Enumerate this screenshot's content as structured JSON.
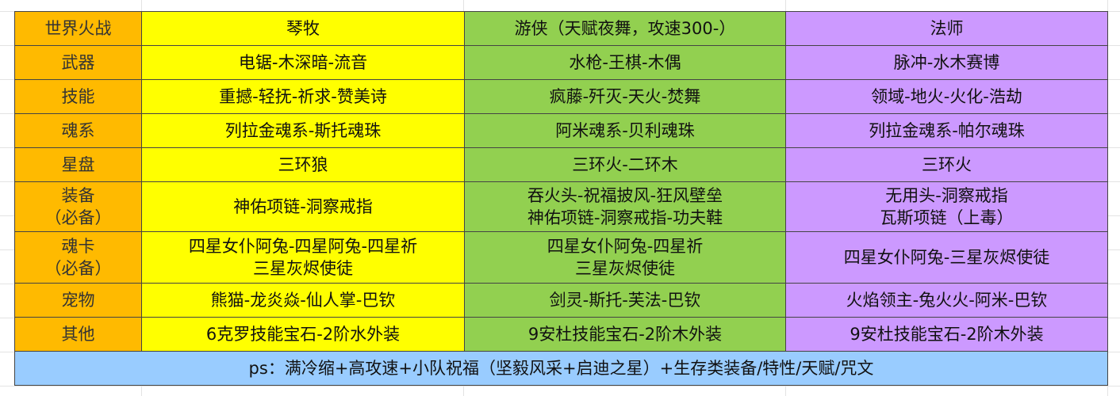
{
  "colors": {
    "label": "#ffba00",
    "qinmu": "#ffff00",
    "youxia": "#92d050",
    "fashi": "#cc99ff",
    "note": "#99ccff"
  },
  "header": [
    "世界火战",
    "琴牧",
    "游侠（天赋夜舞，攻速300-）",
    "法师"
  ],
  "rows": [
    {
      "label": [
        "武器"
      ],
      "cells": [
        [
          "电锯-木深暗-流音"
        ],
        [
          "水枪-王棋-木偶"
        ],
        [
          "脉冲-水木赛博"
        ]
      ]
    },
    {
      "label": [
        "技能"
      ],
      "cells": [
        [
          "重撼-轻抚-祈求-赞美诗"
        ],
        [
          "疯藤-歼灭-天火-焚舞"
        ],
        [
          "领域-地火-火化-浩劫"
        ]
      ]
    },
    {
      "label": [
        "魂系"
      ],
      "cells": [
        [
          "列拉金魂系-斯托魂珠"
        ],
        [
          "阿米魂系-贝利魂珠"
        ],
        [
          "列拉金魂系-帕尔魂珠"
        ]
      ]
    },
    {
      "label": [
        "星盘"
      ],
      "cells": [
        [
          "三环狼"
        ],
        [
          "三环火-二环木"
        ],
        [
          "三环火"
        ]
      ]
    },
    {
      "label": [
        "装备",
        "（必备）"
      ],
      "cells": [
        [
          "神佑项链-洞察戒指"
        ],
        [
          "吞火头-祝福披风-狂风壁垒",
          "神佑项链-洞察戒指-功夫鞋"
        ],
        [
          "无用头-洞察戒指",
          "瓦斯项链（上毒）"
        ]
      ]
    },
    {
      "label": [
        "魂卡",
        "（必备）"
      ],
      "cells": [
        [
          "四星女仆阿兔-四星阿兔-四星祈",
          "三星灰烬使徒"
        ],
        [
          "四星女仆阿兔-四星祈",
          "三星灰烬使徒"
        ],
        [
          "四星女仆阿兔-三星灰烬使徒"
        ]
      ]
    },
    {
      "label": [
        "宠物"
      ],
      "cells": [
        [
          "熊猫-龙炎焱-仙人掌-巴钦"
        ],
        [
          "剑灵-斯托-芙法-巴钦"
        ],
        [
          "火焰领主-兔火火-阿米-巴钦"
        ]
      ]
    },
    {
      "label": [
        "其他"
      ],
      "cells": [
        [
          "6克罗技能宝石-2阶水外装"
        ],
        [
          "9安杜技能宝石-2阶木外装"
        ],
        [
          "9安杜技能宝石-2阶木外装"
        ]
      ]
    }
  ],
  "note": "ps：满冷缩+高攻速+小队祝福（坚毅风采+启迪之星）+生存类装备/特性/天赋/咒文"
}
